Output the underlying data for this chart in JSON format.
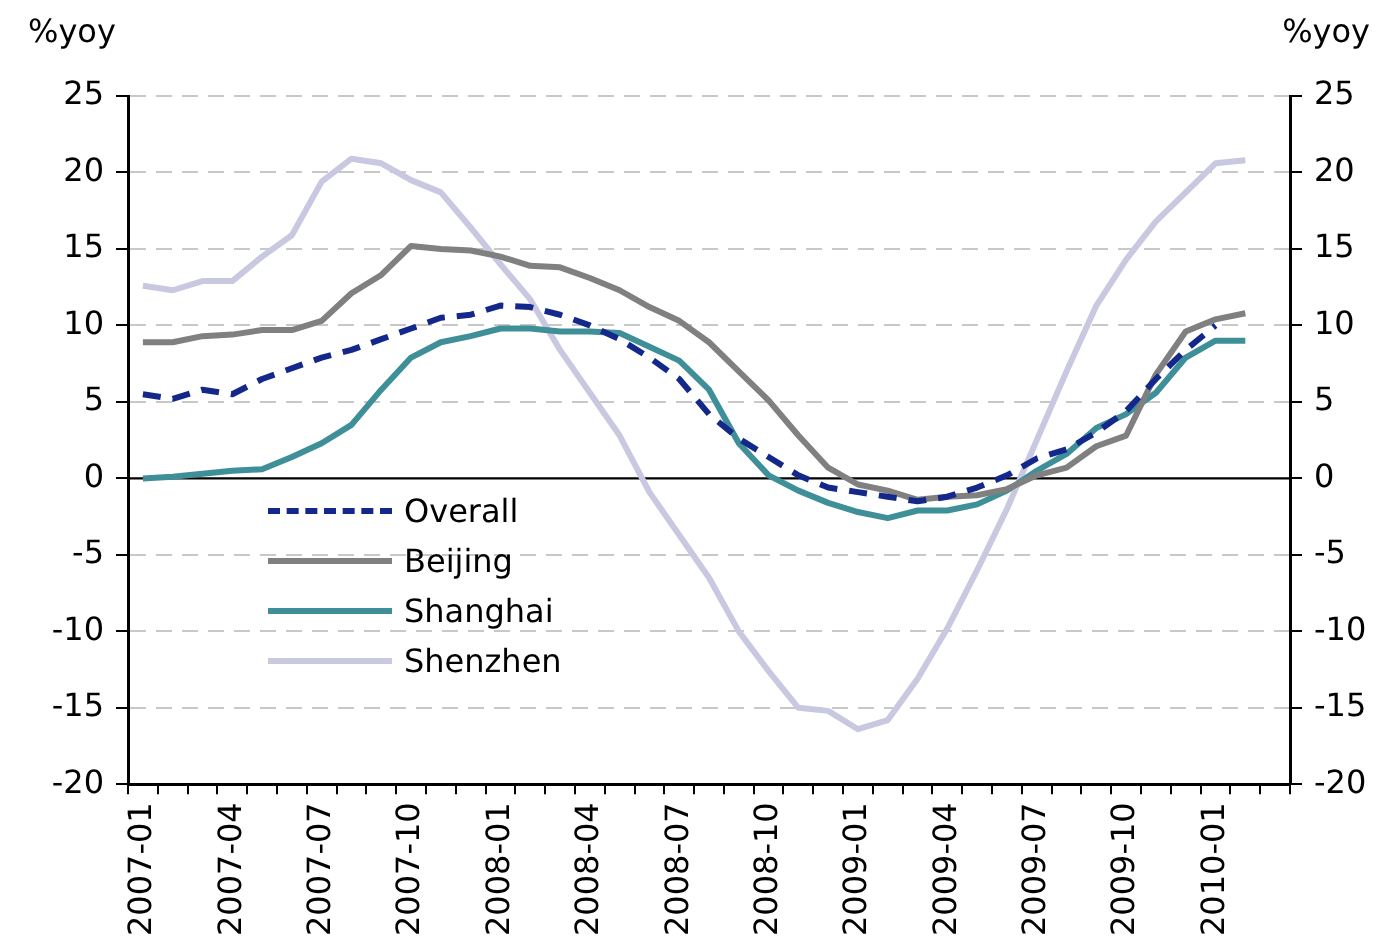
{
  "chart_data": {
    "type": "line",
    "ylabel": "%yoy",
    "y2label": "%yoy",
    "categories": [
      "2007-01",
      null,
      null,
      "2007-04",
      null,
      null,
      "2007-07",
      null,
      null,
      "2007-10",
      null,
      null,
      "2008-01",
      null,
      null,
      "2008-04",
      null,
      null,
      "2008-07",
      null,
      null,
      "2008-10",
      null,
      null,
      "2009-01",
      null,
      null,
      "2009-04",
      null,
      null,
      "2009-07",
      null,
      null,
      "2009-10",
      null,
      null,
      "2010-01",
      null,
      null
    ],
    "series": [
      {
        "name": "Overall",
        "color": "#14288c",
        "line_style": "dashed",
        "values": [
          5.5,
          5.2,
          5.8,
          5.5,
          6.5,
          7.2,
          7.9,
          8.4,
          9.1,
          9.8,
          10.5,
          10.7,
          11.3,
          11.2,
          10.7,
          10.0,
          9.1,
          7.9,
          6.5,
          4.2,
          2.6,
          1.4,
          0.2,
          -0.6,
          -0.9,
          -1.2,
          -1.5,
          -1.2,
          -0.6,
          0.2,
          1.3,
          1.9,
          3.0,
          4.4,
          6.5,
          8.4,
          10.0,
          null,
          null
        ]
      },
      {
        "name": "Beijing",
        "color": "#808080",
        "line_style": "solid",
        "values": [
          8.9,
          8.9,
          9.3,
          9.4,
          9.7,
          9.7,
          10.3,
          12.1,
          13.3,
          15.2,
          15.0,
          14.9,
          14.5,
          13.9,
          13.8,
          13.1,
          12.3,
          11.2,
          10.3,
          8.9,
          7.0,
          5.1,
          2.8,
          0.7,
          -0.4,
          -0.8,
          -1.4,
          -1.2,
          -1.1,
          -0.7,
          0.2,
          0.7,
          2.1,
          2.8,
          6.8,
          9.6,
          10.4,
          10.8,
          null
        ]
      },
      {
        "name": "Shanghai",
        "color": "#3f8f99",
        "line_style": "solid",
        "values": [
          0.0,
          0.1,
          0.3,
          0.5,
          0.6,
          1.4,
          2.3,
          3.5,
          5.8,
          7.9,
          8.9,
          9.3,
          9.8,
          9.8,
          9.6,
          9.6,
          9.5,
          8.6,
          7.7,
          5.8,
          2.3,
          0.2,
          -0.8,
          -1.6,
          -2.2,
          -2.6,
          -2.1,
          -2.1,
          -1.7,
          -0.8,
          0.5,
          1.6,
          3.3,
          4.2,
          5.6,
          7.9,
          9.0,
          9.0,
          null
        ]
      },
      {
        "name": "Shenzhen",
        "color": "#c8c8e0",
        "line_style": "solid",
        "values": [
          12.6,
          12.3,
          12.9,
          12.9,
          14.5,
          15.9,
          19.4,
          20.9,
          20.6,
          19.5,
          18.7,
          16.4,
          14.0,
          11.7,
          8.4,
          5.6,
          2.8,
          -0.9,
          -3.7,
          -6.5,
          -10.0,
          -12.6,
          -15.0,
          -15.2,
          -16.4,
          -15.8,
          -13.1,
          -9.8,
          -6.0,
          -2.0,
          2.5,
          7.0,
          11.3,
          14.3,
          16.8,
          18.7,
          20.6,
          20.8,
          null
        ]
      }
    ],
    "ylim": [
      -20,
      25
    ],
    "yticks": [
      -20,
      -15,
      -10,
      -5,
      0,
      5,
      10,
      15,
      20,
      25
    ],
    "y2lim": [
      -20,
      25
    ],
    "y2ticks": [
      -20,
      -15,
      -10,
      -5,
      0,
      5,
      10,
      15,
      20,
      25
    ],
    "grid": "y",
    "legend": "bottom left",
    "marker": "none"
  }
}
